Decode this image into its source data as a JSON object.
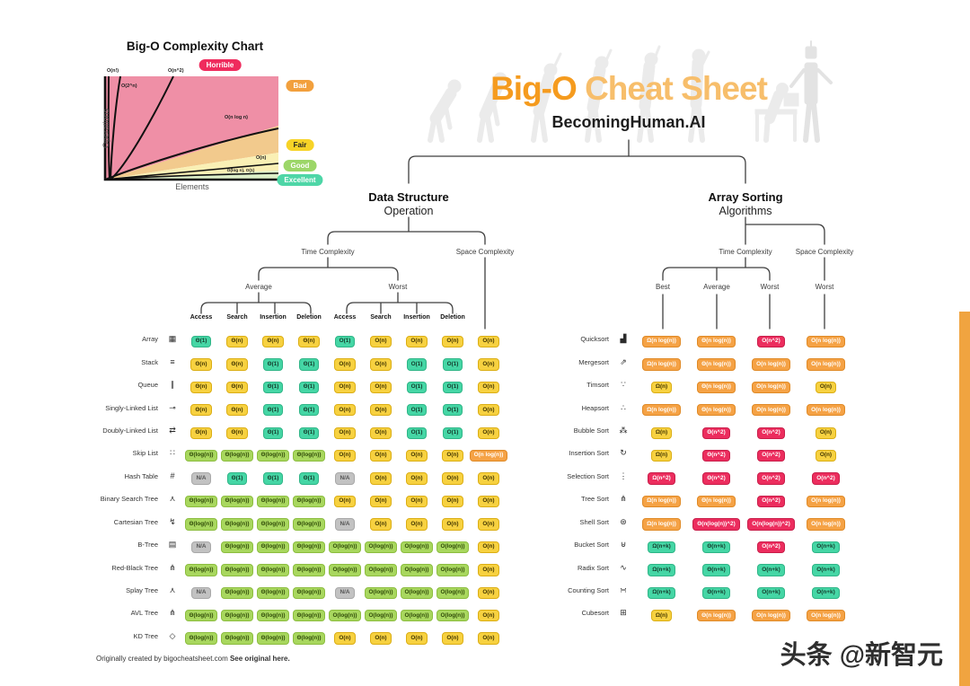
{
  "palette": {
    "green": "#45D6A5",
    "lightgreen": "#A8D75E",
    "yellow": "#F7D140",
    "orange": "#F5A245",
    "red": "#EC2D5E",
    "gray": "#C2C2C2",
    "accent": "#F59B1E"
  },
  "header": {
    "title_accent": "Big-O",
    "title_rest": " Cheat Sheet",
    "subtitle": "BecomingHuman.AI"
  },
  "complexity_chart": {
    "title": "Big-O Complexity Chart",
    "xlabel": "Elements",
    "ylabel": "Operations",
    "ratings": {
      "horrible": "Horrible",
      "bad": "Bad",
      "fair": "Fair",
      "good": "Good",
      "excellent": "Excellent"
    },
    "curves": {
      "factorial": "O(n!)",
      "exponential": "O(2^n)",
      "quadratic": "O(n^2)",
      "nlogn": "O(n log n)",
      "linear": "O(n)",
      "log": "O(log n), O(1)"
    }
  },
  "ds_section": {
    "title": "Data Structure",
    "subtitle": "Operation",
    "time_label": "Time Complexity",
    "space_label": "Space Complexity",
    "average_label": "Average",
    "worst_label": "Worst",
    "space_worst_label": "Worst",
    "col_headers": [
      "Access",
      "Search",
      "Insertion",
      "Deletion",
      "Access",
      "Search",
      "Insertion",
      "Deletion"
    ],
    "rows": [
      {
        "name": "Array",
        "icon": "array-icon",
        "glyph": "▦",
        "cells": [
          [
            "Θ(1)",
            "green"
          ],
          [
            "Θ(n)",
            "yellow"
          ],
          [
            "Θ(n)",
            "yellow"
          ],
          [
            "Θ(n)",
            "yellow"
          ],
          [
            "O(1)",
            "green"
          ],
          [
            "O(n)",
            "yellow"
          ],
          [
            "O(n)",
            "yellow"
          ],
          [
            "O(n)",
            "yellow"
          ],
          [
            "O(n)",
            "yellow"
          ]
        ]
      },
      {
        "name": "Stack",
        "icon": "stack-icon",
        "glyph": "≡",
        "cells": [
          [
            "Θ(n)",
            "yellow"
          ],
          [
            "Θ(n)",
            "yellow"
          ],
          [
            "Θ(1)",
            "green"
          ],
          [
            "Θ(1)",
            "green"
          ],
          [
            "O(n)",
            "yellow"
          ],
          [
            "O(n)",
            "yellow"
          ],
          [
            "O(1)",
            "green"
          ],
          [
            "O(1)",
            "green"
          ],
          [
            "O(n)",
            "yellow"
          ]
        ]
      },
      {
        "name": "Queue",
        "icon": "queue-icon",
        "glyph": "∥",
        "cells": [
          [
            "Θ(n)",
            "yellow"
          ],
          [
            "Θ(n)",
            "yellow"
          ],
          [
            "Θ(1)",
            "green"
          ],
          [
            "Θ(1)",
            "green"
          ],
          [
            "O(n)",
            "yellow"
          ],
          [
            "O(n)",
            "yellow"
          ],
          [
            "O(1)",
            "green"
          ],
          [
            "O(1)",
            "green"
          ],
          [
            "O(n)",
            "yellow"
          ]
        ]
      },
      {
        "name": "Singly-Linked List",
        "icon": "singly-linked-list-icon",
        "glyph": "⊸",
        "cells": [
          [
            "Θ(n)",
            "yellow"
          ],
          [
            "Θ(n)",
            "yellow"
          ],
          [
            "Θ(1)",
            "green"
          ],
          [
            "Θ(1)",
            "green"
          ],
          [
            "O(n)",
            "yellow"
          ],
          [
            "O(n)",
            "yellow"
          ],
          [
            "O(1)",
            "green"
          ],
          [
            "O(1)",
            "green"
          ],
          [
            "O(n)",
            "yellow"
          ]
        ]
      },
      {
        "name": "Doubly-Linked List",
        "icon": "doubly-linked-list-icon",
        "glyph": "⇄",
        "cells": [
          [
            "Θ(n)",
            "yellow"
          ],
          [
            "Θ(n)",
            "yellow"
          ],
          [
            "Θ(1)",
            "green"
          ],
          [
            "Θ(1)",
            "green"
          ],
          [
            "O(n)",
            "yellow"
          ],
          [
            "O(n)",
            "yellow"
          ],
          [
            "O(1)",
            "green"
          ],
          [
            "O(1)",
            "green"
          ],
          [
            "O(n)",
            "yellow"
          ]
        ]
      },
      {
        "name": "Skip List",
        "icon": "skip-list-icon",
        "glyph": "∷",
        "cells": [
          [
            "Θ(log(n))",
            "lightgreen"
          ],
          [
            "Θ(log(n))",
            "lightgreen"
          ],
          [
            "Θ(log(n))",
            "lightgreen"
          ],
          [
            "Θ(log(n))",
            "lightgreen"
          ],
          [
            "O(n)",
            "yellow"
          ],
          [
            "O(n)",
            "yellow"
          ],
          [
            "O(n)",
            "yellow"
          ],
          [
            "O(n)",
            "yellow"
          ],
          [
            "O(n log(n))",
            "orange"
          ]
        ]
      },
      {
        "name": "Hash Table",
        "icon": "hash-table-icon",
        "glyph": "#",
        "cells": [
          [
            "N/A",
            "gray"
          ],
          [
            "Θ(1)",
            "green"
          ],
          [
            "Θ(1)",
            "green"
          ],
          [
            "Θ(1)",
            "green"
          ],
          [
            "N/A",
            "gray"
          ],
          [
            "O(n)",
            "yellow"
          ],
          [
            "O(n)",
            "yellow"
          ],
          [
            "O(n)",
            "yellow"
          ],
          [
            "O(n)",
            "yellow"
          ]
        ]
      },
      {
        "name": "Binary Search Tree",
        "icon": "binary-search-tree-icon",
        "glyph": "⋏",
        "cells": [
          [
            "Θ(log(n))",
            "lightgreen"
          ],
          [
            "Θ(log(n))",
            "lightgreen"
          ],
          [
            "Θ(log(n))",
            "lightgreen"
          ],
          [
            "Θ(log(n))",
            "lightgreen"
          ],
          [
            "O(n)",
            "yellow"
          ],
          [
            "O(n)",
            "yellow"
          ],
          [
            "O(n)",
            "yellow"
          ],
          [
            "O(n)",
            "yellow"
          ],
          [
            "O(n)",
            "yellow"
          ]
        ]
      },
      {
        "name": "Cartesian Tree",
        "icon": "cartesian-tree-icon",
        "glyph": "↯",
        "cells": [
          [
            "Θ(log(n))",
            "lightgreen"
          ],
          [
            "Θ(log(n))",
            "lightgreen"
          ],
          [
            "Θ(log(n))",
            "lightgreen"
          ],
          [
            "Θ(log(n))",
            "lightgreen"
          ],
          [
            "N/A",
            "gray"
          ],
          [
            "O(n)",
            "yellow"
          ],
          [
            "O(n)",
            "yellow"
          ],
          [
            "O(n)",
            "yellow"
          ],
          [
            "O(n)",
            "yellow"
          ]
        ]
      },
      {
        "name": "B-Tree",
        "icon": "b-tree-icon",
        "glyph": "▤",
        "cells": [
          [
            "N/A",
            "gray"
          ],
          [
            "Θ(log(n))",
            "lightgreen"
          ],
          [
            "Θ(log(n))",
            "lightgreen"
          ],
          [
            "Θ(log(n))",
            "lightgreen"
          ],
          [
            "O(log(n))",
            "lightgreen"
          ],
          [
            "O(log(n))",
            "lightgreen"
          ],
          [
            "O(log(n))",
            "lightgreen"
          ],
          [
            "O(log(n))",
            "lightgreen"
          ],
          [
            "O(n)",
            "yellow"
          ]
        ]
      },
      {
        "name": "Red-Black Tree",
        "icon": "red-black-tree-icon",
        "glyph": "⋔",
        "cells": [
          [
            "Θ(log(n))",
            "lightgreen"
          ],
          [
            "Θ(log(n))",
            "lightgreen"
          ],
          [
            "Θ(log(n))",
            "lightgreen"
          ],
          [
            "Θ(log(n))",
            "lightgreen"
          ],
          [
            "O(log(n))",
            "lightgreen"
          ],
          [
            "O(log(n))",
            "lightgreen"
          ],
          [
            "O(log(n))",
            "lightgreen"
          ],
          [
            "O(log(n))",
            "lightgreen"
          ],
          [
            "O(n)",
            "yellow"
          ]
        ]
      },
      {
        "name": "Splay Tree",
        "icon": "splay-tree-icon",
        "glyph": "⋏",
        "cells": [
          [
            "N/A",
            "gray"
          ],
          [
            "Θ(log(n))",
            "lightgreen"
          ],
          [
            "Θ(log(n))",
            "lightgreen"
          ],
          [
            "Θ(log(n))",
            "lightgreen"
          ],
          [
            "N/A",
            "gray"
          ],
          [
            "O(log(n))",
            "lightgreen"
          ],
          [
            "O(log(n))",
            "lightgreen"
          ],
          [
            "O(log(n))",
            "lightgreen"
          ],
          [
            "O(n)",
            "yellow"
          ]
        ]
      },
      {
        "name": "AVL Tree",
        "icon": "avl-tree-icon",
        "glyph": "⋔",
        "cells": [
          [
            "Θ(log(n))",
            "lightgreen"
          ],
          [
            "Θ(log(n))",
            "lightgreen"
          ],
          [
            "Θ(log(n))",
            "lightgreen"
          ],
          [
            "Θ(log(n))",
            "lightgreen"
          ],
          [
            "O(log(n))",
            "lightgreen"
          ],
          [
            "O(log(n))",
            "lightgreen"
          ],
          [
            "O(log(n))",
            "lightgreen"
          ],
          [
            "O(log(n))",
            "lightgreen"
          ],
          [
            "O(n)",
            "yellow"
          ]
        ]
      },
      {
        "name": "KD Tree",
        "icon": "kd-tree-icon",
        "glyph": "◇",
        "cells": [
          [
            "Θ(log(n))",
            "lightgreen"
          ],
          [
            "Θ(log(n))",
            "lightgreen"
          ],
          [
            "Θ(log(n))",
            "lightgreen"
          ],
          [
            "Θ(log(n))",
            "lightgreen"
          ],
          [
            "O(n)",
            "yellow"
          ],
          [
            "O(n)",
            "yellow"
          ],
          [
            "O(n)",
            "yellow"
          ],
          [
            "O(n)",
            "yellow"
          ],
          [
            "O(n)",
            "yellow"
          ]
        ]
      }
    ]
  },
  "sort_section": {
    "title": "Array Sorting",
    "subtitle": "Algorithms",
    "time_label": "Time Complexity",
    "space_label": "Space Complexity",
    "best_label": "Best",
    "average_label": "Average",
    "worst_label": "Worst",
    "space_worst_label": "Worst",
    "rows": [
      {
        "name": "Quicksort",
        "icon": "quicksort-icon",
        "glyph": "▟",
        "cells": [
          [
            "Ω(n log(n))",
            "orange"
          ],
          [
            "Θ(n log(n))",
            "orange"
          ],
          [
            "O(n^2)",
            "red"
          ],
          [
            "O(n log(n))",
            "orange"
          ]
        ]
      },
      {
        "name": "Mergesort",
        "icon": "mergesort-icon",
        "glyph": "⇗",
        "cells": [
          [
            "Ω(n log(n))",
            "orange"
          ],
          [
            "Θ(n log(n))",
            "orange"
          ],
          [
            "O(n log(n))",
            "orange"
          ],
          [
            "O(n log(n))",
            "orange"
          ]
        ]
      },
      {
        "name": "Timsort",
        "icon": "timsort-icon",
        "glyph": "∵",
        "cells": [
          [
            "Ω(n)",
            "yellow"
          ],
          [
            "Θ(n log(n))",
            "orange"
          ],
          [
            "O(n log(n))",
            "orange"
          ],
          [
            "O(n)",
            "yellow"
          ]
        ]
      },
      {
        "name": "Heapsort",
        "icon": "heapsort-icon",
        "glyph": "∴",
        "cells": [
          [
            "Ω(n log(n))",
            "orange"
          ],
          [
            "Θ(n log(n))",
            "orange"
          ],
          [
            "O(n log(n))",
            "orange"
          ],
          [
            "O(n log(n))",
            "orange"
          ]
        ]
      },
      {
        "name": "Bubble Sort",
        "icon": "bubble-sort-icon",
        "glyph": "⁂",
        "cells": [
          [
            "Ω(n)",
            "yellow"
          ],
          [
            "Θ(n^2)",
            "red"
          ],
          [
            "O(n^2)",
            "red"
          ],
          [
            "O(n)",
            "yellow"
          ]
        ]
      },
      {
        "name": "Insertion Sort",
        "icon": "insertion-sort-icon",
        "glyph": "↻",
        "cells": [
          [
            "Ω(n)",
            "yellow"
          ],
          [
            "Θ(n^2)",
            "red"
          ],
          [
            "O(n^2)",
            "red"
          ],
          [
            "O(n)",
            "yellow"
          ]
        ]
      },
      {
        "name": "Selection Sort",
        "icon": "selection-sort-icon",
        "glyph": "⋮",
        "cells": [
          [
            "Ω(n^2)",
            "red"
          ],
          [
            "Θ(n^2)",
            "red"
          ],
          [
            "O(n^2)",
            "red"
          ],
          [
            "O(n^2)",
            "red"
          ]
        ]
      },
      {
        "name": "Tree Sort",
        "icon": "tree-sort-icon",
        "glyph": "⋔",
        "cells": [
          [
            "Ω(n log(n))",
            "orange"
          ],
          [
            "Θ(n log(n))",
            "orange"
          ],
          [
            "O(n^2)",
            "red"
          ],
          [
            "O(n log(n))",
            "orange"
          ]
        ]
      },
      {
        "name": "Shell Sort",
        "icon": "shell-sort-icon",
        "glyph": "⊛",
        "cells": [
          [
            "Ω(n log(n))",
            "orange"
          ],
          [
            "Θ(n(log(n))^2)",
            "red"
          ],
          [
            "O(n(log(n))^2)",
            "red"
          ],
          [
            "O(n log(n))",
            "orange"
          ]
        ]
      },
      {
        "name": "Bucket Sort",
        "icon": "bucket-sort-icon",
        "glyph": "⊎",
        "cells": [
          [
            "Ω(n+k)",
            "green"
          ],
          [
            "Θ(n+k)",
            "green"
          ],
          [
            "O(n^2)",
            "red"
          ],
          [
            "O(n+k)",
            "green"
          ]
        ]
      },
      {
        "name": "Radix Sort",
        "icon": "radix-sort-icon",
        "glyph": "∿",
        "cells": [
          [
            "Ω(n+k)",
            "green"
          ],
          [
            "Θ(n+k)",
            "green"
          ],
          [
            "O(n+k)",
            "green"
          ],
          [
            "O(n+k)",
            "green"
          ]
        ]
      },
      {
        "name": "Counting Sort",
        "icon": "counting-sort-icon",
        "glyph": "∺",
        "cells": [
          [
            "Ω(n+k)",
            "green"
          ],
          [
            "Θ(n+k)",
            "green"
          ],
          [
            "O(n+k)",
            "green"
          ],
          [
            "O(n+k)",
            "green"
          ]
        ]
      },
      {
        "name": "Cubesort",
        "icon": "cubesort-icon",
        "glyph": "⊞",
        "cells": [
          [
            "Ω(n)",
            "yellow"
          ],
          [
            "Θ(n log(n))",
            "orange"
          ],
          [
            "O(n log(n))",
            "orange"
          ],
          [
            "O(n log(n))",
            "orange"
          ]
        ]
      }
    ]
  },
  "footer": {
    "credit": "Originally created by bigocheatsheet.com ",
    "link": "See original here."
  },
  "watermark": "头条 @新智元"
}
